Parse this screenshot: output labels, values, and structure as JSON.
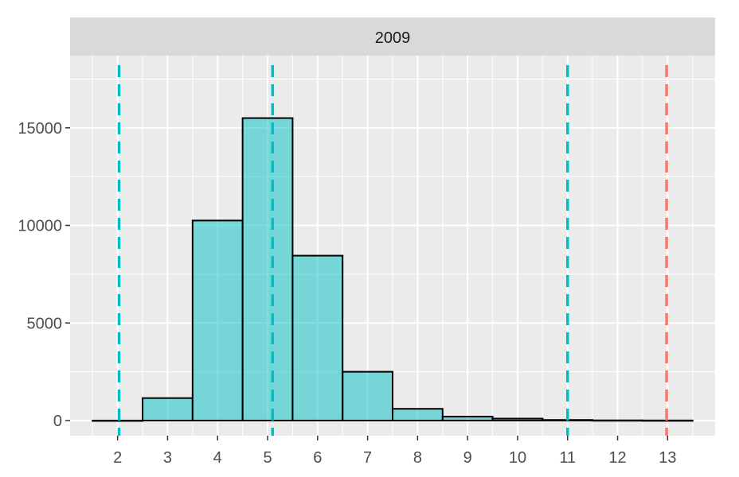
{
  "chart_data": {
    "type": "bar",
    "panel_title": "2009",
    "categories": [
      2,
      3,
      4,
      5,
      6,
      7,
      8,
      9,
      10,
      11,
      12,
      13
    ],
    "values": [
      0,
      1150,
      10250,
      15500,
      8450,
      2500,
      600,
      200,
      100,
      30,
      10,
      5
    ],
    "x_ticks": [
      2,
      3,
      4,
      5,
      6,
      7,
      8,
      9,
      10,
      11,
      12,
      13
    ],
    "y_ticks": [
      0,
      5000,
      10000,
      15000
    ],
    "xlim": [
      1.05,
      13.95
    ],
    "ylim": [
      -775,
      18700
    ],
    "grid": true,
    "vlines": [
      {
        "x": 2.03,
        "color": "#00BFC4",
        "dashed": true
      },
      {
        "x": 5.1,
        "color": "#00BFC4",
        "dashed": true
      },
      {
        "x": 11.0,
        "color": "#00BFC4",
        "dashed": true
      },
      {
        "x": 12.98,
        "color": "#F8766D",
        "dashed": true
      }
    ],
    "colors": {
      "bar_fill": "#00BFC4",
      "bar_stroke": "#000000",
      "panel_bg": "#EBEBEB",
      "strip_bg": "#D9D9D9",
      "grid": "#FFFFFF"
    },
    "xlabel": "",
    "ylabel": ""
  }
}
